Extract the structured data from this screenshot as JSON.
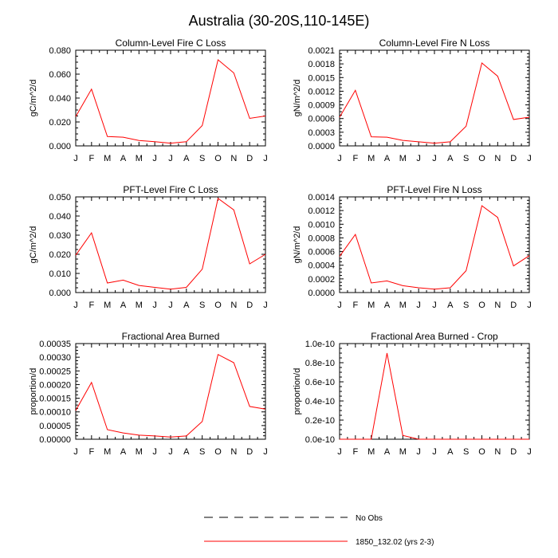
{
  "figure": {
    "title": "Australia (30-20S,110-145E)",
    "colors": {
      "model": "#ff0000",
      "obs": "#000000",
      "frame": "#000000"
    }
  },
  "legend": {
    "obs_label": "No Obs",
    "model_label": "1850_132.02 (yrs 2-3)"
  },
  "chart_data": [
    {
      "type": "line",
      "title": "Column-Level Fire C Loss",
      "ylabel": "gC/m^2/d",
      "categories": [
        "J",
        "F",
        "M",
        "A",
        "M",
        "J",
        "J",
        "A",
        "S",
        "O",
        "N",
        "D",
        "J"
      ],
      "yticks": [
        "0.000",
        "0.020",
        "0.040",
        "0.060",
        "0.080"
      ],
      "ylim": [
        0,
        0.08
      ],
      "series": [
        {
          "name": "1850_132.02 (yrs 2-3)",
          "values": [
            0.0245,
            0.0475,
            0.0078,
            0.0073,
            0.0045,
            0.0035,
            0.0023,
            0.0035,
            0.017,
            0.072,
            0.061,
            0.023,
            0.025
          ]
        }
      ]
    },
    {
      "type": "line",
      "title": "Column-Level Fire N Loss",
      "ylabel": "gN/m^2/d",
      "categories": [
        "J",
        "F",
        "M",
        "A",
        "M",
        "J",
        "J",
        "A",
        "S",
        "O",
        "N",
        "D",
        "J"
      ],
      "yticks": [
        "0.0000",
        "0.0003",
        "0.0006",
        "0.0009",
        "0.0012",
        "0.0015",
        "0.0018",
        "0.0021"
      ],
      "ylim": [
        0,
        0.0021
      ],
      "series": [
        {
          "name": "1850_132.02 (yrs 2-3)",
          "values": [
            0.00063,
            0.00122,
            0.0002,
            0.00019,
            0.00012,
            9e-05,
            6e-05,
            9e-05,
            0.00043,
            0.00182,
            0.00153,
            0.00058,
            0.00063
          ]
        }
      ]
    },
    {
      "type": "line",
      "title": "PFT-Level Fire C Loss",
      "ylabel": "gC/m^2/d",
      "categories": [
        "J",
        "F",
        "M",
        "A",
        "M",
        "J",
        "J",
        "A",
        "S",
        "O",
        "N",
        "D",
        "J"
      ],
      "yticks": [
        "0.000",
        "0.010",
        "0.020",
        "0.030",
        "0.040",
        "0.050"
      ],
      "ylim": [
        0,
        0.05
      ],
      "series": [
        {
          "name": "1850_132.02 (yrs 2-3)",
          "values": [
            0.0195,
            0.0312,
            0.005,
            0.0065,
            0.0037,
            0.0027,
            0.0018,
            0.0027,
            0.0122,
            0.0492,
            0.0432,
            0.015,
            0.02
          ]
        }
      ]
    },
    {
      "type": "line",
      "title": "PFT-Level Fire N Loss",
      "ylabel": "gN/m^2/d",
      "categories": [
        "J",
        "F",
        "M",
        "A",
        "M",
        "J",
        "J",
        "A",
        "S",
        "O",
        "N",
        "D",
        "J"
      ],
      "yticks": [
        "0.0000",
        "0.0002",
        "0.0004",
        "0.0006",
        "0.0008",
        "0.0010",
        "0.0012",
        "0.0014"
      ],
      "ylim": [
        0,
        0.0014
      ],
      "series": [
        {
          "name": "1850_132.02 (yrs 2-3)",
          "values": [
            0.00053,
            0.00085,
            0.00014,
            0.00017,
            0.0001,
            7e-05,
            5e-05,
            7e-05,
            0.00032,
            0.00127,
            0.0011,
            0.00039,
            0.00054
          ]
        }
      ]
    },
    {
      "type": "line",
      "title": "Fractional Area Burned",
      "ylabel": "proportion/d",
      "categories": [
        "J",
        "F",
        "M",
        "A",
        "M",
        "J",
        "J",
        "A",
        "S",
        "O",
        "N",
        "D",
        "J"
      ],
      "yticks": [
        "0.00000",
        "0.00005",
        "0.00010",
        "0.00015",
        "0.00020",
        "0.00025",
        "0.00030",
        "0.00035"
      ],
      "ylim": [
        0,
        0.00035
      ],
      "series": [
        {
          "name": "1850_132.02 (yrs 2-3)",
          "values": [
            0.000105,
            0.000208,
            3.5e-05,
            2.3e-05,
            1.5e-05,
            1.2e-05,
            8e-06,
            1.2e-05,
            6.5e-05,
            0.00031,
            0.00028,
            0.00012,
            0.00011
          ]
        }
      ]
    },
    {
      "type": "line",
      "title": "Fractional Area Burned - Crop",
      "ylabel": "proportion/d",
      "categories": [
        "J",
        "F",
        "M",
        "A",
        "M",
        "J",
        "J",
        "A",
        "S",
        "O",
        "N",
        "D",
        "J"
      ],
      "yticks": [
        "0.0e-10",
        "0.2e-10",
        "0.4e-10",
        "0.6e-10",
        "0.8e-10",
        "1.0e-10"
      ],
      "ylim": [
        0,
        1e-10
      ],
      "series": [
        {
          "name": "1850_132.02 (yrs 2-3)",
          "values": [
            0,
            0,
            0,
            9e-11,
            4e-12,
            0,
            0,
            0,
            0,
            0,
            0,
            0,
            0
          ]
        }
      ]
    }
  ]
}
